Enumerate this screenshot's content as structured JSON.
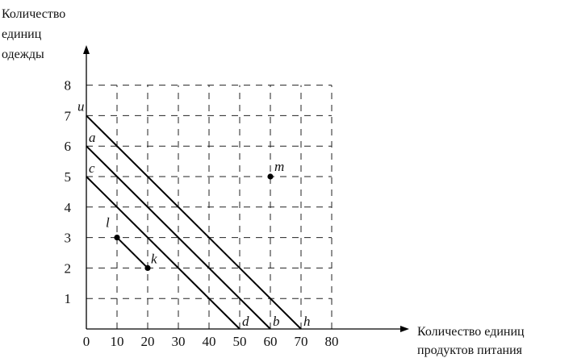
{
  "chart_data": {
    "type": "line",
    "ylabel_lines": [
      "Количество",
      "единиц",
      "одежды"
    ],
    "xlabel_lines": [
      "Количество единиц",
      "продуктов питания"
    ],
    "x_ticks": [
      "0",
      "10",
      "20",
      "30",
      "40",
      "50",
      "60",
      "70",
      "80"
    ],
    "y_ticks": [
      "1",
      "2",
      "3",
      "4",
      "5",
      "6",
      "7",
      "8"
    ],
    "xlim": [
      0,
      80
    ],
    "ylim": [
      0,
      8
    ],
    "grid": "dashed",
    "lines": [
      {
        "points": [
          [
            0,
            7
          ],
          [
            70,
            0
          ]
        ],
        "start_label": "u",
        "end_label": "h"
      },
      {
        "points": [
          [
            0,
            6
          ],
          [
            60,
            0
          ]
        ],
        "start_label": "a",
        "end_label": "b"
      },
      {
        "points": [
          [
            0,
            5
          ],
          [
            50,
            0
          ]
        ],
        "start_label": "c",
        "end_label": "d"
      },
      {
        "points": [
          [
            10,
            3
          ],
          [
            20,
            2
          ]
        ],
        "start_label": "l",
        "end_label": "k"
      }
    ],
    "points": [
      {
        "label": "m",
        "x": 60,
        "y": 5
      },
      {
        "label": "l",
        "x": 10,
        "y": 3
      },
      {
        "label": "k",
        "x": 20,
        "y": 2
      }
    ]
  }
}
